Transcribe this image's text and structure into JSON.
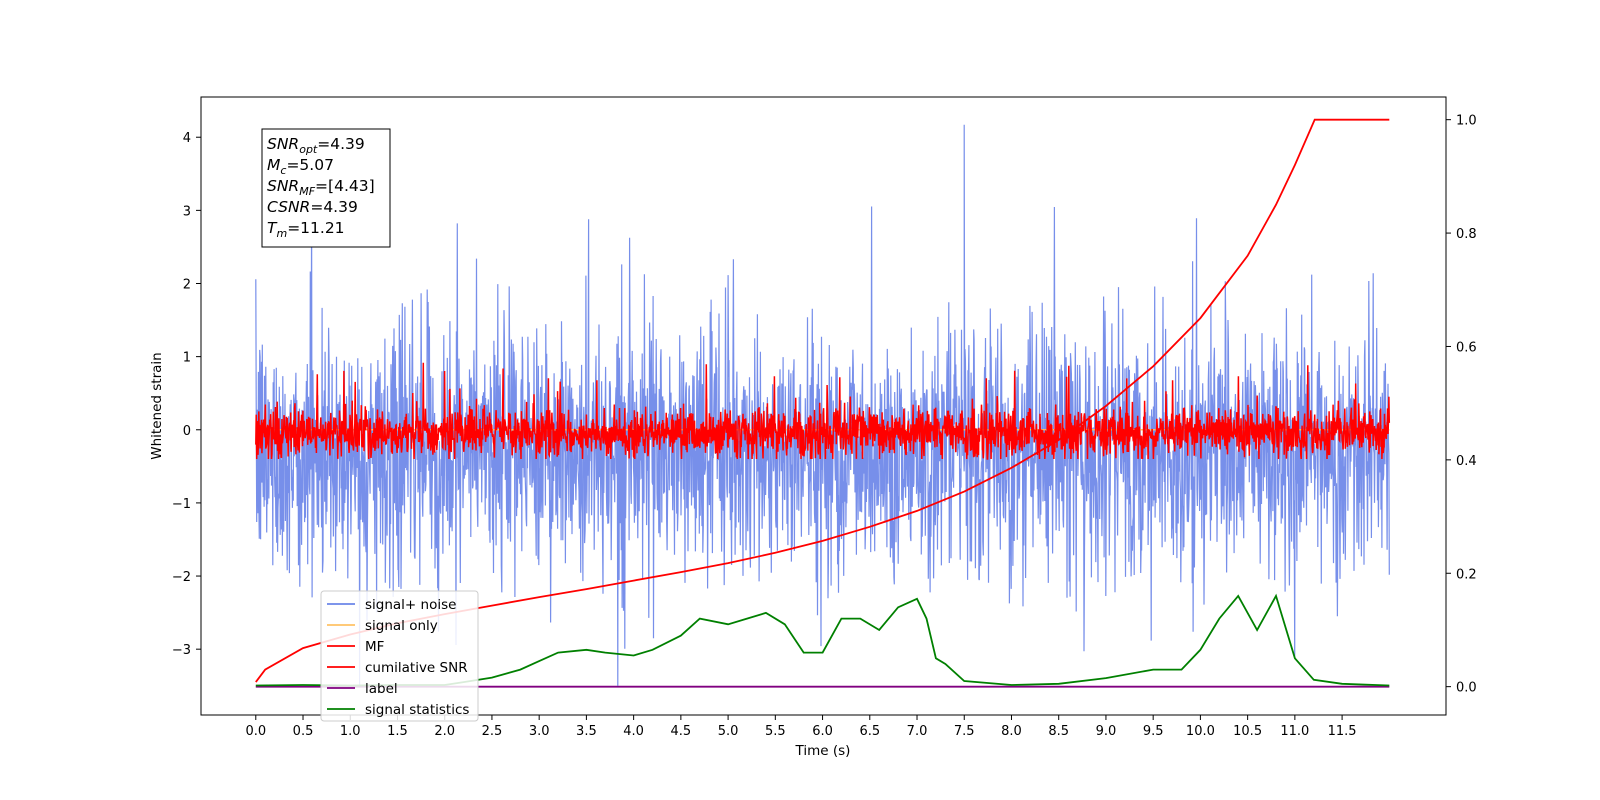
{
  "chart_data": {
    "type": "line",
    "xlabel": "Time (s)",
    "ylabel_left": "Whitened strain",
    "ylabel_right": "",
    "xlim": [
      -0.58,
      12.6
    ],
    "ylim_left": [
      -3.9,
      4.55
    ],
    "ylim_right": [
      -0.05,
      1.04
    ],
    "grid": false,
    "x_ticks": [
      "0.0",
      "0.5",
      "1.0",
      "1.5",
      "2.0",
      "2.5",
      "3.0",
      "3.5",
      "4.0",
      "4.5",
      "5.0",
      "5.5",
      "6.0",
      "6.5",
      "7.0",
      "7.5",
      "8.0",
      "8.5",
      "9.0",
      "9.5",
      "10.0",
      "10.5",
      "11.0",
      "11.5"
    ],
    "y_ticks_left": [
      "4",
      "3",
      "2",
      "1",
      "0",
      "−1",
      "−2",
      "−3"
    ],
    "y_ticks_right": [
      "1.0",
      "0.8",
      "0.6",
      "0.4",
      "0.2",
      "0.0"
    ],
    "colors": {
      "signal_noise": "#6b86e8",
      "signal_only": "#ffc266",
      "mf": "#ff0000",
      "cumulative_snr": "#ff0000",
      "label": "#800080",
      "signal_statistics": "#008000"
    },
    "series": [
      {
        "name": "signal+ noise",
        "axis": "left",
        "x_range": [
          0,
          12.0
        ],
        "description_values": {
          "center": -0.3,
          "typical_min": -1.9,
          "typical_max": 1.9,
          "peak_max": 4.17,
          "peak_min": -3.5
        }
      },
      {
        "name": "signal only",
        "axis": "left",
        "x_range": [
          0,
          12.0
        ],
        "values_constant": 0
      },
      {
        "name": "MF",
        "axis": "left",
        "x_range": [
          0,
          12.0
        ],
        "description_values": {
          "center": -0.05,
          "typical_min": -0.35,
          "typical_max": 0.5,
          "peak_max": 0.98
        }
      },
      {
        "name": "cumilative SNR",
        "axis": "right",
        "x": [
          0,
          0.1,
          0.5,
          1.0,
          1.5,
          2.0,
          2.5,
          3.0,
          3.5,
          4.0,
          4.5,
          5.0,
          5.5,
          6.0,
          6.5,
          7.0,
          7.5,
          8.0,
          8.5,
          9.0,
          9.5,
          10.0,
          10.5,
          10.8,
          11.0,
          11.21,
          11.5,
          12.0
        ],
        "y": [
          0.008,
          0.03,
          0.068,
          0.092,
          0.112,
          0.128,
          0.143,
          0.158,
          0.172,
          0.187,
          0.202,
          0.218,
          0.236,
          0.257,
          0.282,
          0.31,
          0.344,
          0.386,
          0.435,
          0.495,
          0.565,
          0.65,
          0.76,
          0.85,
          0.92,
          1.0,
          1.0,
          1.0
        ]
      },
      {
        "name": "label",
        "axis": "right",
        "x": [
          0,
          12.0
        ],
        "y": [
          0.0,
          0.0
        ]
      },
      {
        "name": "signal statistics",
        "axis": "right",
        "x": [
          0,
          0.5,
          1.0,
          1.5,
          2.0,
          2.2,
          2.5,
          2.8,
          3.0,
          3.2,
          3.5,
          3.7,
          4.0,
          4.2,
          4.5,
          4.7,
          5.0,
          5.2,
          5.4,
          5.6,
          5.8,
          6.0,
          6.2,
          6.4,
          6.6,
          6.8,
          7.0,
          7.1,
          7.2,
          7.3,
          7.5,
          8.0,
          8.5,
          9.0,
          9.5,
          9.8,
          10.0,
          10.2,
          10.4,
          10.6,
          10.8,
          11.0,
          11.2,
          11.5,
          12.0
        ],
        "y": [
          0.002,
          0.003,
          0.002,
          0.003,
          0.003,
          0.008,
          0.016,
          0.03,
          0.045,
          0.06,
          0.065,
          0.06,
          0.055,
          0.065,
          0.09,
          0.12,
          0.11,
          0.12,
          0.13,
          0.11,
          0.06,
          0.06,
          0.12,
          0.12,
          0.1,
          0.14,
          0.155,
          0.12,
          0.05,
          0.04,
          0.01,
          0.003,
          0.005,
          0.015,
          0.03,
          0.03,
          0.065,
          0.12,
          0.16,
          0.1,
          0.16,
          0.05,
          0.012,
          0.005,
          0.002
        ]
      }
    ]
  },
  "annotation": {
    "line1": {
      "symbol": "SNR",
      "sub": "opt",
      "value": "=4.39"
    },
    "line2": {
      "symbol": "M",
      "sub": "c",
      "value": "=5.07"
    },
    "line3": {
      "symbol": "SNR",
      "sub": "MF",
      "value": "=[4.43]"
    },
    "line4": {
      "symbol": "CSNR",
      "sub": "",
      "value": "=4.39"
    },
    "line5": {
      "symbol": "T",
      "sub": "m",
      "value": "=11.21"
    }
  },
  "legend": {
    "placement": "lower-left",
    "items": [
      "signal+ noise",
      "signal only",
      "MF",
      "cumilative SNR",
      "label",
      "signal statistics"
    ]
  }
}
